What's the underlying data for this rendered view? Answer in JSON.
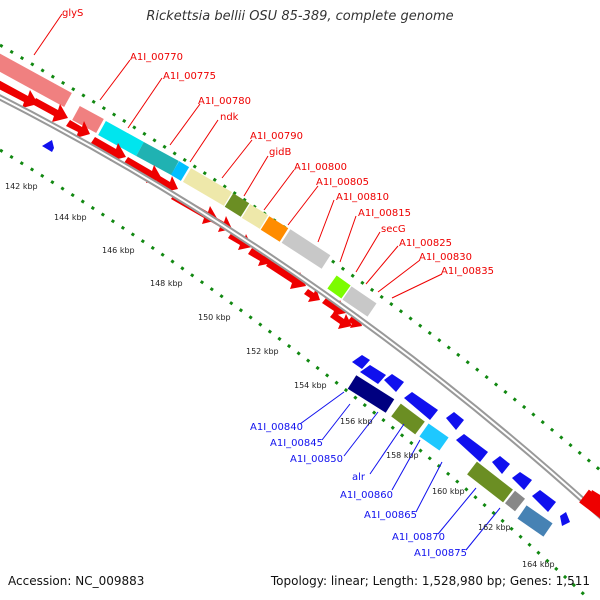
{
  "title": "Rickettsia bellii OSU 85-389, complete genome",
  "footer": {
    "accession": "Accession: NC_009883",
    "summary": "Topology: linear; Length: 1,528,980 bp; Genes: 1,511"
  },
  "colors": {
    "forward_gene": "#ee0000",
    "reverse_gene": "#1010ee",
    "backbone": "#888888",
    "ticks": "#118811"
  },
  "ticks": [
    "142 kbp",
    "144 kbp",
    "146 kbp",
    "148 kbp",
    "150 kbp",
    "152 kbp",
    "154 kbp",
    "156 kbp",
    "158 kbp",
    "160 kbp",
    "162 kbp",
    "164 kbp"
  ],
  "top_labels": [
    "glyS",
    "A1I_00770",
    "A1I_00775",
    "A1I_00780",
    "ndk",
    "A1I_00790",
    "gidB",
    "A1I_00800",
    "A1I_00805",
    "A1I_00810",
    "A1I_00815",
    "secG",
    "A1I_00825",
    "A1I_00830",
    "A1I_00835"
  ],
  "bottom_labels": [
    "A1I_00840",
    "A1I_00845",
    "A1I_00850",
    "alr",
    "A1I_00860",
    "A1I_00865",
    "A1I_00870",
    "A1I_00875"
  ]
}
